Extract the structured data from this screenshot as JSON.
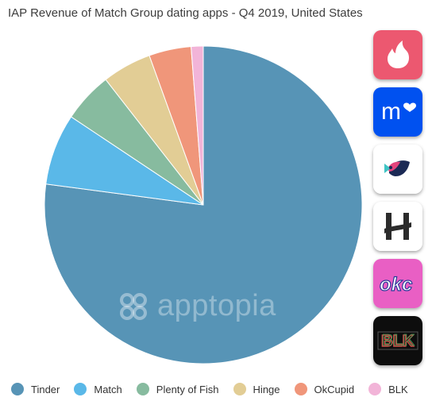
{
  "title": "IAP Revenue of Match Group dating apps - Q4 2019, United States",
  "watermark": "apptopia",
  "chart_data": {
    "type": "pie",
    "title": "IAP Revenue of Match Group dating apps - Q4 2019, United States",
    "legend_position": "bottom",
    "slices": [
      {
        "label": "Tinder",
        "value": 75.4,
        "color": "#5794b6"
      },
      {
        "label": "Match",
        "value": 7.1,
        "color": "#5ab8e8"
      },
      {
        "label": "Plenty of Fish",
        "value": 5.0,
        "color": "#87bb9f"
      },
      {
        "label": "Hinge",
        "value": 4.9,
        "color": "#e2cd95"
      },
      {
        "label": "OkCupid",
        "value": 4.2,
        "color": "#f0967a"
      },
      {
        "label": "BLK",
        "value": 1.2,
        "color": "#f2b4d8"
      }
    ]
  },
  "app_icons": [
    {
      "name": "tinder-app-icon",
      "icon": "flame-icon",
      "bg": "#ec5870"
    },
    {
      "name": "match-app-icon",
      "icon": "m-heart-icon",
      "text": "m",
      "bg": "#0051f0"
    },
    {
      "name": "plenty-of-fish-app-icon",
      "icon": "fish-icon",
      "bg": "#ffffff"
    },
    {
      "name": "hinge-app-icon",
      "icon": "h-icon",
      "bg": "#ffffff"
    },
    {
      "name": "okcupid-app-icon",
      "icon": "okc-icon",
      "text": "okc",
      "bg": "#e95fc4"
    },
    {
      "name": "blk-app-icon",
      "icon": "blk-icon",
      "text": "BLK",
      "bg": "#0d0d0d"
    }
  ]
}
